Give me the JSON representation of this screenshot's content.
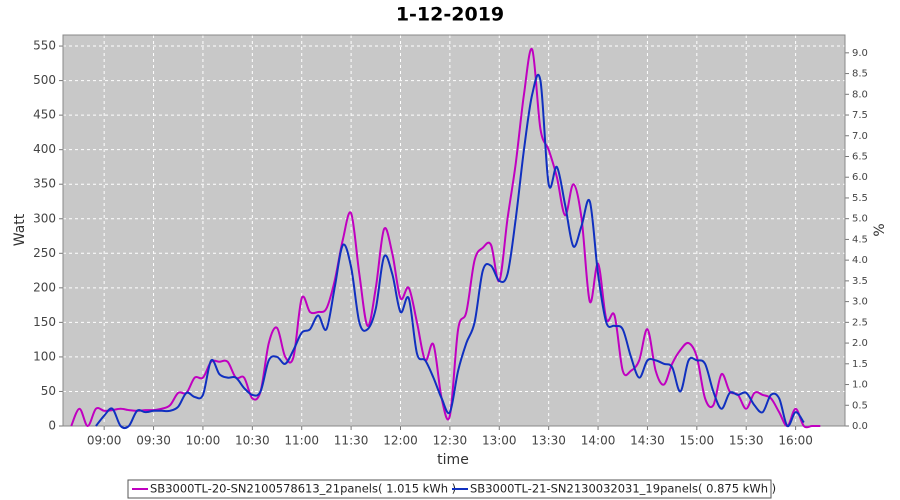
{
  "chart_data": {
    "type": "line",
    "title": "1-12-2019",
    "xlabel": "time",
    "ylabel": "Watt",
    "y2label": "%",
    "x": [
      "08:40",
      "08:45",
      "08:50",
      "08:55",
      "09:00",
      "09:05",
      "09:10",
      "09:15",
      "09:20",
      "09:25",
      "09:30",
      "09:35",
      "09:40",
      "09:45",
      "09:50",
      "09:55",
      "10:00",
      "10:05",
      "10:10",
      "10:15",
      "10:20",
      "10:25",
      "10:30",
      "10:35",
      "10:40",
      "10:45",
      "10:50",
      "10:55",
      "11:00",
      "11:05",
      "11:10",
      "11:15",
      "11:20",
      "11:25",
      "11:30",
      "11:35",
      "11:40",
      "11:45",
      "11:50",
      "11:55",
      "12:00",
      "12:05",
      "12:10",
      "12:15",
      "12:20",
      "12:25",
      "12:30",
      "12:35",
      "12:40",
      "12:45",
      "12:50",
      "12:55",
      "13:00",
      "13:05",
      "13:10",
      "13:15",
      "13:20",
      "13:25",
      "13:30",
      "13:35",
      "13:40",
      "13:45",
      "13:50",
      "13:55",
      "14:00",
      "14:05",
      "14:10",
      "14:15",
      "14:20",
      "14:25",
      "14:30",
      "14:35",
      "14:40",
      "14:45",
      "14:50",
      "14:55",
      "15:00",
      "15:05",
      "15:10",
      "15:15",
      "15:20",
      "15:25",
      "15:30",
      "15:35",
      "15:40",
      "15:45",
      "15:50",
      "15:55",
      "16:00",
      "16:05",
      "16:10",
      "16:15"
    ],
    "series": [
      {
        "name": "SB3000TL-20-SN2100578613_21panels( 1.015 kWh )",
        "color": "#c000c0",
        "values": [
          0,
          25,
          0,
          25,
          22,
          23,
          25,
          23,
          22,
          23,
          23,
          25,
          30,
          48,
          48,
          70,
          70,
          93,
          93,
          93,
          70,
          70,
          40,
          50,
          120,
          142,
          100,
          100,
          185,
          165,
          165,
          170,
          210,
          270,
          308,
          220,
          145,
          200,
          285,
          250,
          185,
          200,
          150,
          95,
          118,
          40,
          15,
          140,
          165,
          240,
          258,
          262,
          210,
          300,
          380,
          480,
          545,
          430,
          400,
          360,
          305,
          350,
          300,
          180,
          235,
          155,
          160,
          80,
          80,
          95,
          140,
          80,
          60,
          90,
          110,
          120,
          100,
          40,
          30,
          75,
          50,
          45,
          25,
          48,
          45,
          40,
          20,
          0,
          25,
          0,
          0,
          0
        ]
      },
      {
        "name": "SB3000TL-21-SN2130032031_19panels( 0.875 kWh )",
        "color": "#1030c0",
        "values": [
          null,
          null,
          null,
          0,
          15,
          25,
          0,
          0,
          22,
          20,
          22,
          22,
          22,
          28,
          48,
          42,
          45,
          95,
          75,
          70,
          70,
          55,
          45,
          50,
          95,
          100,
          90,
          110,
          135,
          140,
          160,
          140,
          200,
          262,
          230,
          150,
          140,
          170,
          245,
          220,
          165,
          185,
          105,
          95,
          70,
          40,
          20,
          80,
          120,
          150,
          225,
          232,
          210,
          220,
          300,
          400,
          480,
          500,
          350,
          375,
          320,
          260,
          290,
          325,
          220,
          150,
          145,
          140,
          100,
          70,
          95,
          95,
          90,
          85,
          50,
          95,
          95,
          90,
          50,
          25,
          48,
          45,
          48,
          30,
          20,
          45,
          40,
          0,
          20,
          5,
          null,
          null
        ]
      }
    ],
    "xlim": [
      "08:35",
      "16:30"
    ],
    "xticks": [
      "09:00",
      "09:30",
      "10:00",
      "10:30",
      "11:00",
      "11:30",
      "12:00",
      "12:30",
      "13:00",
      "13:30",
      "14:00",
      "14:30",
      "15:00",
      "15:30",
      "16:00"
    ],
    "ylim": [
      0,
      566
    ],
    "yticks": [
      0,
      50,
      100,
      150,
      200,
      250,
      300,
      350,
      400,
      450,
      500,
      550
    ],
    "y2lim": [
      0,
      9.43
    ],
    "y2ticks": [
      {
        "value": 0,
        "label": "0.0"
      },
      {
        "value": 0.5,
        "label": "0.5"
      },
      {
        "value": 1,
        "label": "1.0"
      },
      {
        "value": 1.5,
        "label": "1.5"
      },
      {
        "value": 2,
        "label": "2.0"
      },
      {
        "value": 2.5,
        "label": "2.5"
      },
      {
        "value": 3,
        "label": "3.0"
      },
      {
        "value": 3.5,
        "label": "3.5"
      },
      {
        "value": 4,
        "label": "4.0"
      },
      {
        "value": 4.5,
        "label": "4.5"
      },
      {
        "value": 5,
        "label": "5.0"
      },
      {
        "value": 5.5,
        "label": "5.5"
      },
      {
        "value": 6,
        "label": "6.0"
      },
      {
        "value": 6.5,
        "label": "6.5"
      },
      {
        "value": 7,
        "label": "7.0"
      },
      {
        "value": 7.5,
        "label": "7.5"
      },
      {
        "value": 8,
        "label": "8.0"
      },
      {
        "value": 8.5,
        "label": "8.5"
      },
      {
        "value": 9,
        "label": "9.0"
      }
    ],
    "grid": true,
    "legend": "bottom"
  }
}
